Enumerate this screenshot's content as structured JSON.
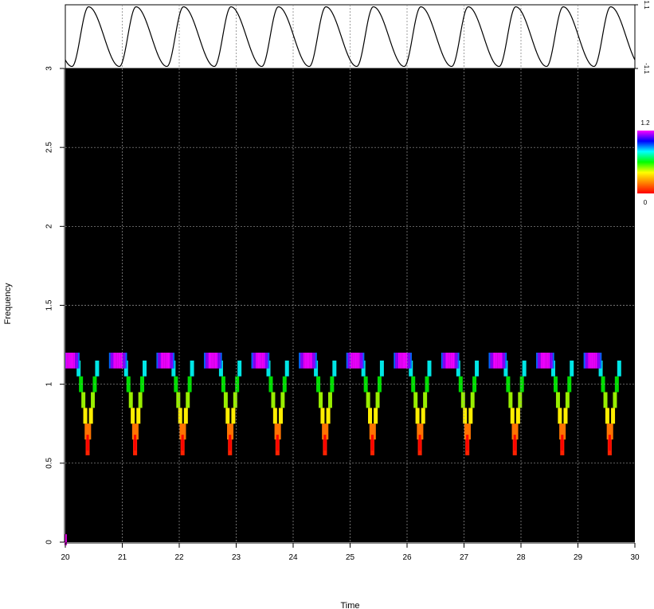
{
  "chart_data": [
    {
      "type": "line",
      "panel": "waveform",
      "x_range": [
        20,
        30
      ],
      "y_range": [
        -1.1,
        1.1
      ],
      "y_tick_labels": [
        "-1.1",
        "1.1"
      ],
      "frequency": 1.2,
      "phase_at_x0": 0.86,
      "grid": true
    },
    {
      "type": "heatmap",
      "panel": "time-frequency",
      "xlabel": "Time",
      "ylabel": "Frequency",
      "xlim": [
        20,
        30
      ],
      "ylim": [
        0,
        3
      ],
      "x_ticks": [
        "20",
        "21",
        "22",
        "23",
        "24",
        "25",
        "26",
        "27",
        "28",
        "29",
        "30"
      ],
      "y_ticks": [
        "0",
        "0.5",
        "1",
        "1.5",
        "2",
        "2.5",
        "3"
      ],
      "background": "#000000",
      "grid": true,
      "frequency_bins": [
        0.6,
        0.7,
        0.8,
        0.9,
        1.0,
        1.1,
        1.2
      ],
      "cycle_period": 0.8333,
      "cycle_start": 20.15,
      "instantaneous_frequency_profile": [
        {
          "offset": 0.0,
          "value": 1.2
        },
        {
          "offset": 0.1,
          "value": 1.1
        },
        {
          "offset": 0.15,
          "value": 1.0
        },
        {
          "offset": 0.2,
          "value": 0.9
        },
        {
          "offset": 0.24,
          "value": 0.8
        },
        {
          "offset": 0.27,
          "value": 0.7
        },
        {
          "offset": 0.29,
          "value": 0.6
        },
        {
          "offset": 0.32,
          "value": 0.7
        },
        {
          "offset": 0.36,
          "value": 0.8
        },
        {
          "offset": 0.4,
          "value": 0.9
        },
        {
          "offset": 0.44,
          "value": 1.0
        },
        {
          "offset": 0.49,
          "value": 1.1
        },
        {
          "offset": 0.53,
          "value": 1.2
        }
      ],
      "colorbar": {
        "min": 0,
        "max": 1.2,
        "min_label": "0",
        "max_label": "1.2",
        "colors": [
          "#ff0000",
          "#ff8000",
          "#ffff00",
          "#00ff00",
          "#00ffff",
          "#0000ff",
          "#ff00ff"
        ]
      }
    }
  ]
}
